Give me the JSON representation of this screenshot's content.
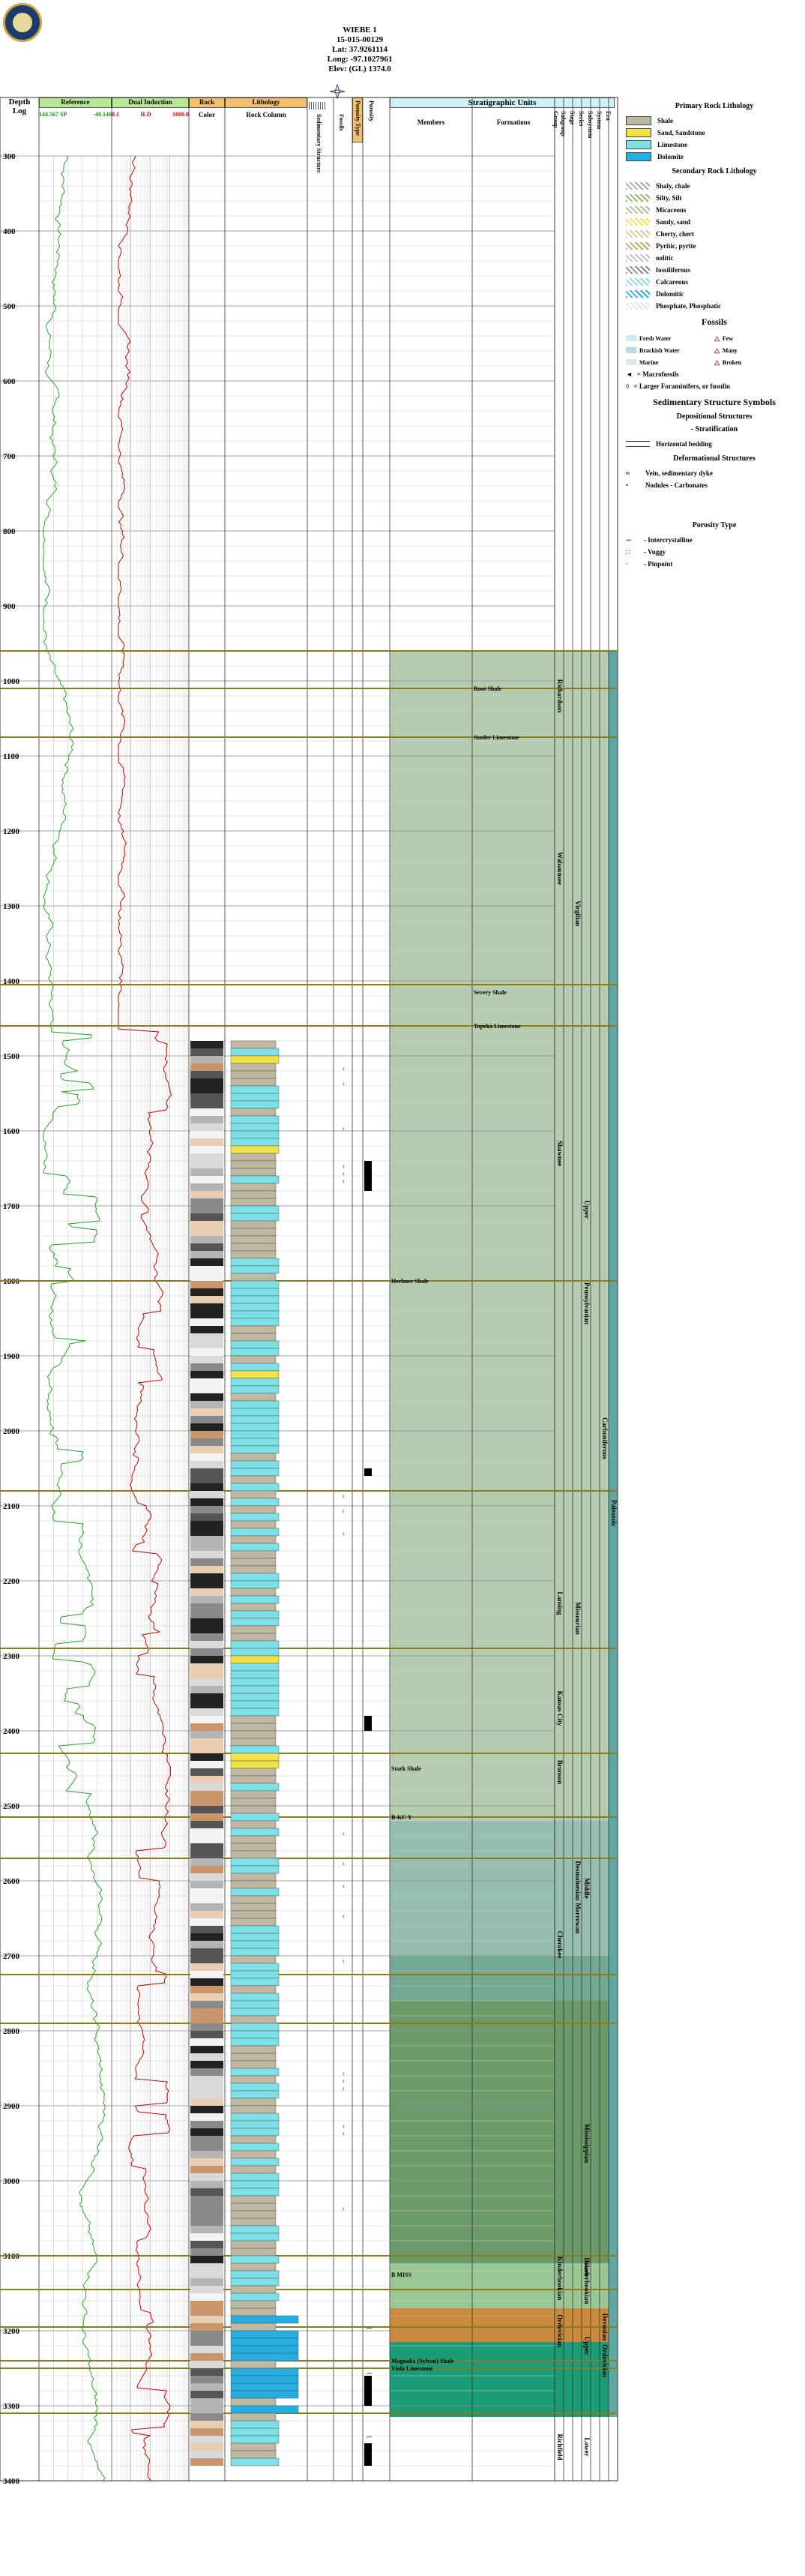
{
  "header": {
    "well_name": "WIEBE 1",
    "api": "15-015-00129",
    "lat": "Lat: 37.9261114",
    "long": "Long: -97.1027961",
    "elev": "Elev: (GL) 1374.0"
  },
  "columns": {
    "depth_title": "Depth",
    "depth_sub": "Log",
    "reference": "Reference",
    "ref_scale_left": "144.567 SP",
    "ref_scale_right": "-40.146",
    "dual_induction": "Dual Induction",
    "ind_scale_left": "0.1",
    "ind_scale_mid": "ILD",
    "ind_scale_right": "1000.0",
    "rock": "Rock",
    "color": "Color",
    "lithology": "Lithology",
    "rock_column": "Rock Column",
    "sedimentary_structure": "Sedimentary Structure",
    "fossils": "Fossils",
    "porosity_type": "Porosity Type",
    "porosity": "Porosity",
    "stratigraphic_units": "Stratigraphic Units",
    "members": "Members",
    "formations": "Formations",
    "group": "Group",
    "subgroup": "Subgroup",
    "stage": "Stage",
    "series": "Series",
    "subsystem": "Subsystem",
    "system": "System",
    "era": "Era"
  },
  "depths": [
    "300",
    "400",
    "500",
    "600",
    "700",
    "800",
    "900",
    "1000",
    "1100",
    "1200",
    "1300",
    "1400",
    "1500",
    "1600",
    "1700",
    "1800",
    "1900",
    "2000",
    "2100",
    "2200",
    "2300",
    "2400",
    "2500",
    "2600",
    "2700",
    "2800",
    "2900",
    "3000",
    "3100",
    "3200",
    "3300",
    "3400"
  ],
  "members": [
    {
      "name": "Heebner Shale",
      "depth": 1800
    },
    {
      "name": "Stark Shale",
      "depth": 2450
    },
    {
      "name": "B-KC Y",
      "depth": 2515
    },
    {
      "name": "B MISS",
      "depth": 3125
    },
    {
      "name": "Magnolia (Sylvan) Shale",
      "depth": 3240
    },
    {
      "name": "Viola Limestone",
      "depth": 3250
    }
  ],
  "formations": [
    {
      "name": "Root Shale",
      "depth": 1010
    },
    {
      "name": "Stotler Limestone",
      "depth": 1075
    },
    {
      "name": "Severy Shale",
      "depth": 1415
    },
    {
      "name": "Topeka Limestone",
      "depth": 1460
    }
  ],
  "groups": [
    {
      "name": "Richardson",
      "top": 960,
      "bottom": 1080
    },
    {
      "name": "Wabaunsee",
      "top": 1080,
      "bottom": 1420
    },
    {
      "name": "Shawnee",
      "top": 1460,
      "bottom": 1800
    },
    {
      "name": "Lansing",
      "top": 2060,
      "bottom": 2400
    },
    {
      "name": "Kansas City",
      "top": 2300,
      "bottom": 2440
    },
    {
      "name": "Bronson",
      "top": 2430,
      "bottom": 2480
    },
    {
      "name": "Cherokee",
      "top": 2630,
      "bottom": 2740
    },
    {
      "name": "Kinderhookian",
      "top": 3100,
      "bottom": 3160
    },
    {
      "name": "Ordovician",
      "top": 3160,
      "bottom": 3240
    },
    {
      "name": "Richfield",
      "top": 3330,
      "bottom": 3380
    }
  ],
  "stages": [
    {
      "name": "Virgilian",
      "top": 1200,
      "bottom": 1420
    },
    {
      "name": "Missourian",
      "top": 2060,
      "bottom": 2440
    },
    {
      "name": "Desmoinesian",
      "top": 2560,
      "bottom": 2640
    },
    {
      "name": "Morrowan",
      "top": 2610,
      "bottom": 2690
    }
  ],
  "series": [
    {
      "name": "Upper",
      "top": 1650,
      "bottom": 1760
    },
    {
      "name": "Pennsylvanian",
      "top": 1760,
      "bottom": 1900
    },
    {
      "name": "Middle",
      "top": 2560,
      "bottom": 2660
    },
    {
      "name": "Mississippian",
      "top": 2840,
      "bottom": 3060
    },
    {
      "name": "Lower",
      "top": 3090,
      "bottom": 3140
    },
    {
      "name": "Kinderhookian",
      "top": 3100,
      "bottom": 3170
    },
    {
      "name": "Upper",
      "top": 3200,
      "bottom": 3240
    },
    {
      "name": "Lower",
      "top": 3330,
      "bottom": 3380
    }
  ],
  "systems": [
    {
      "name": "Carboniferous",
      "top": 1960,
      "bottom": 2060
    },
    {
      "name": "Devonian",
      "top": 3170,
      "bottom": 3220
    },
    {
      "name": "Ordovician",
      "top": 3220,
      "bottom": 3260
    }
  ],
  "eras": [
    {
      "name": "Paleozoic",
      "top": 2060,
      "bottom": 2160
    }
  ],
  "colors": {
    "pennsylvanian": "#b6ccb0",
    "desmoinesian": "#97bdb1",
    "cherokee": "#73a893",
    "mississippian": "#6c9a6a",
    "kinderhook": "#9bc796",
    "devonian": "#cc8a3c",
    "ordovician": "#1a9c78",
    "paleozoic": "#5fa7a3",
    "sp_curve": "#22aa22",
    "ild_curve": "#cc0000",
    "top_marker": "#8a7d16",
    "header_green": "#b7e894",
    "header_orange": "#f5c06b",
    "header_cyan": "#ccf2f6",
    "limestone": "#7de0e6",
    "dolomite": "#27aee0",
    "shale": "#bfb8a3",
    "sandstone": "#f0e24a"
  },
  "legend": {
    "primary_title": "Primary Rock Lithology",
    "primary": [
      "Shale",
      "Sand, Sandstone",
      "Limestone",
      "Dolomite"
    ],
    "secondary_title": "Secondary Rock Lithology",
    "secondary": [
      "Shaly, chale",
      "Silty, Silt",
      "Micaceous",
      "Sandy, sand",
      "Cherty, chert",
      "Pyritic, pyrite",
      "oolitic",
      "fossiliferous",
      "Calcareous",
      "Dolomitic",
      "Phosphate, Phosphatic"
    ],
    "fossils_title": "Fossils",
    "fossils_left": [
      "Fresh Water",
      "Brackish Water",
      "Marine"
    ],
    "fossils_right": [
      "Few",
      "Many",
      "Broken"
    ],
    "macrofossils": "= Macrofossils",
    "forams": "= Larger Foraminifers, or fusulin",
    "sed_title": "Sedimentary Structure Symbols",
    "depositional": "Depositional Structures",
    "stratification": "- Stratification",
    "horizontal": "Horizontal bedding",
    "deformational": "Deformational Structures",
    "vein": "Vein, sedimentary dyke",
    "nodules": "Nodules - Carbonates",
    "porosity_title": "Porosity Type",
    "intercrystalline": "- Intercrystalline",
    "vuggy": "- Vuggy",
    "pinpoint": "- Pinpoint"
  }
}
